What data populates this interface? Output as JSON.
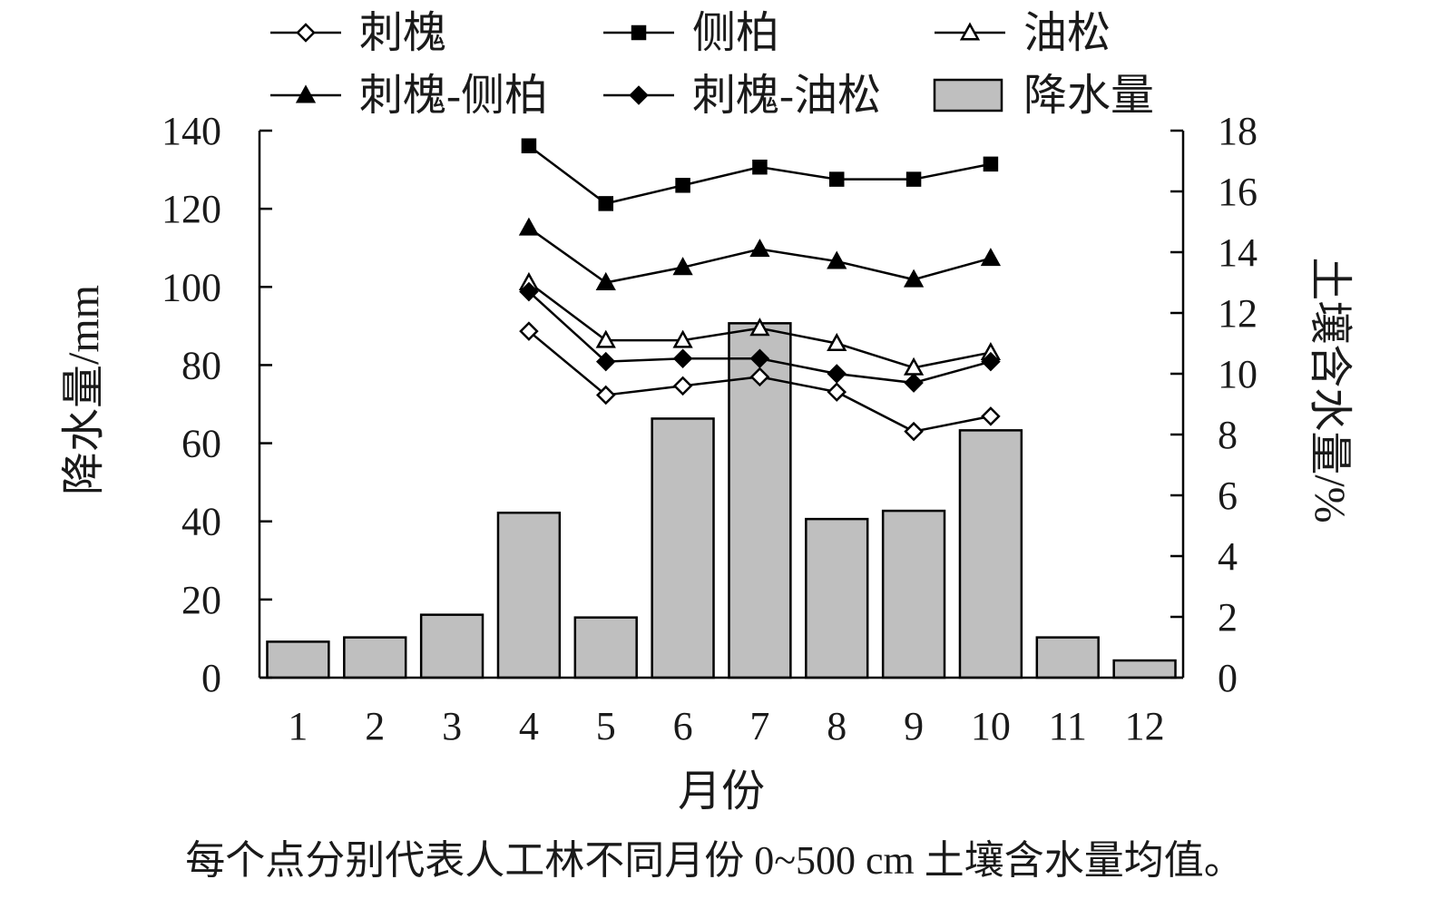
{
  "caption": "每个点分别代表人工林不同月份 0~500 cm 土壤含水量均值。",
  "chart_data": {
    "type": "bar",
    "xlabel": "月份",
    "ylabel_left": "降水量/mm",
    "ylabel_right": "土壤含水量/%",
    "categories": [
      "1",
      "2",
      "3",
      "4",
      "5",
      "6",
      "7",
      "8",
      "9",
      "10",
      "11",
      "12"
    ],
    "ylim_left": [
      0,
      140
    ],
    "ylim_right": [
      0,
      18
    ],
    "yticks_left": [
      "0",
      "20",
      "40",
      "60",
      "80",
      "100",
      "120",
      "140"
    ],
    "yticks_right": [
      "0",
      "2",
      "4",
      "6",
      "8",
      "10",
      "12",
      "14",
      "16",
      "18"
    ],
    "grid": false,
    "legend_position": "top",
    "bar_series": {
      "name": "降水量",
      "color": "#bfbfbf",
      "values": [
        9.2,
        10.3,
        16.1,
        42.2,
        15.4,
        66.3,
        90.7,
        40.6,
        42.7,
        63.3,
        10.3,
        4.4
      ]
    },
    "line_series": [
      {
        "name": "刺槐",
        "marker": "diamond-open",
        "months": [
          4,
          5,
          6,
          7,
          8,
          9,
          10
        ],
        "values": [
          11.4,
          9.3,
          9.6,
          9.9,
          9.4,
          8.1,
          8.6
        ]
      },
      {
        "name": "侧柏",
        "marker": "square-filled",
        "months": [
          4,
          5,
          6,
          7,
          8,
          9,
          10
        ],
        "values": [
          17.5,
          15.6,
          16.2,
          16.8,
          16.4,
          16.4,
          16.9
        ]
      },
      {
        "name": "油松",
        "marker": "triangle-open",
        "months": [
          4,
          5,
          6,
          7,
          8,
          9,
          10
        ],
        "values": [
          13.0,
          11.1,
          11.1,
          11.5,
          11.0,
          10.2,
          10.7
        ]
      },
      {
        "name": "刺槐-侧柏",
        "marker": "triangle-filled",
        "months": [
          4,
          5,
          6,
          7,
          8,
          9,
          10
        ],
        "values": [
          14.8,
          13.0,
          13.5,
          14.1,
          13.7,
          13.1,
          13.8
        ]
      },
      {
        "name": "刺槐-油松",
        "marker": "diamond-filled",
        "months": [
          4,
          5,
          6,
          7,
          8,
          9,
          10
        ],
        "values": [
          12.7,
          10.4,
          10.5,
          10.5,
          10.0,
          9.7,
          10.4
        ]
      }
    ],
    "legend": [
      "刺槐",
      "侧柏",
      "油松",
      "刺槐-侧柏",
      "刺槐-油松",
      "降水量"
    ]
  }
}
